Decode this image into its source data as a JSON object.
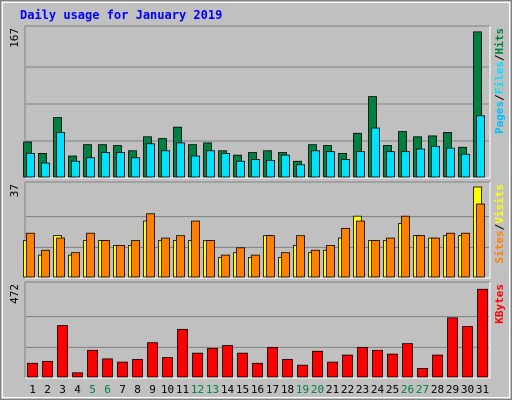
{
  "title": "Daily usage for January 2019",
  "colors": {
    "background": "#C0C0C0",
    "panel": "#C0C0C0",
    "grid": "#808080",
    "title": "#0000FF",
    "hits": "#008040",
    "files": "#00E0FF",
    "pages": "#00C0FF",
    "visits": "#FFFF00",
    "sites": "#FF8000",
    "kbytes": "#FF0000",
    "weekend": "#008040",
    "weekday": "#000000",
    "legend_sep": "#000000"
  },
  "chart_data": [
    {
      "type": "bar",
      "name": "hits-files-pages",
      "categories": [
        "1",
        "2",
        "3",
        "4",
        "5",
        "6",
        "7",
        "8",
        "9",
        "10",
        "11",
        "12",
        "13",
        "14",
        "15",
        "16",
        "17",
        "18",
        "19",
        "20",
        "21",
        "22",
        "23",
        "24",
        "25",
        "26",
        "27",
        "28",
        "29",
        "30",
        "31"
      ],
      "weekend_categories": [
        "5",
        "6",
        "12",
        "13",
        "19",
        "20",
        "26",
        "27"
      ],
      "max_label": "167",
      "ylim": [
        0,
        167
      ],
      "legend": [
        "Pages",
        "Files",
        "Hits"
      ],
      "series": [
        {
          "name": "Hits",
          "color": "#008040",
          "values": [
            40,
            27,
            68,
            24,
            37,
            37,
            36,
            30,
            46,
            44,
            57,
            37,
            39,
            30,
            25,
            28,
            30,
            28,
            18,
            37,
            36,
            27,
            50,
            92,
            36,
            52,
            46,
            47,
            51,
            34,
            166
          ]
        },
        {
          "name": "Files",
          "color": "#00E0FF",
          "values": [
            27,
            16,
            51,
            18,
            22,
            28,
            28,
            22,
            38,
            30,
            39,
            24,
            30,
            27,
            18,
            20,
            19,
            25,
            14,
            30,
            29,
            20,
            29,
            56,
            29,
            29,
            32,
            35,
            33,
            26,
            70
          ]
        }
      ]
    },
    {
      "type": "bar",
      "name": "visits-sites",
      "categories": [
        "1",
        "2",
        "3",
        "4",
        "5",
        "6",
        "7",
        "8",
        "9",
        "10",
        "11",
        "12",
        "13",
        "14",
        "15",
        "16",
        "17",
        "18",
        "19",
        "20",
        "21",
        "22",
        "23",
        "24",
        "25",
        "26",
        "27",
        "28",
        "29",
        "30",
        "31"
      ],
      "max_label": "37",
      "ylim": [
        0,
        37
      ],
      "legend": [
        "Sites",
        "Visits"
      ],
      "series": [
        {
          "name": "Visits",
          "color": "#FFFF00",
          "values": [
            15,
            9,
            17,
            9,
            15,
            15,
            13,
            13,
            23,
            15,
            15,
            15,
            15,
            8,
            10,
            8,
            17,
            8,
            13,
            10,
            11,
            16,
            25,
            15,
            15,
            22,
            17,
            16,
            17,
            17,
            37
          ]
        },
        {
          "name": "Sites",
          "color": "#FF8000",
          "values": [
            18,
            11,
            16,
            10,
            18,
            15,
            13,
            15,
            26,
            16,
            17,
            23,
            15,
            9,
            12,
            9,
            17,
            10,
            17,
            11,
            13,
            20,
            23,
            15,
            16,
            25,
            17,
            16,
            18,
            18,
            30
          ]
        }
      ]
    },
    {
      "type": "bar",
      "name": "kbytes",
      "categories": [
        "1",
        "2",
        "3",
        "4",
        "5",
        "6",
        "7",
        "8",
        "9",
        "10",
        "11",
        "12",
        "13",
        "14",
        "15",
        "16",
        "17",
        "18",
        "19",
        "20",
        "21",
        "22",
        "23",
        "24",
        "25",
        "26",
        "27",
        "28",
        "29",
        "30",
        "31"
      ],
      "max_label": "472",
      "ylim": [
        0,
        472
      ],
      "legend": [
        "KBytes"
      ],
      "series": [
        {
          "name": "KBytes",
          "color": "#FF0000",
          "values": [
            72,
            82,
            270,
            22,
            140,
            95,
            78,
            92,
            180,
            102,
            250,
            125,
            150,
            165,
            125,
            72,
            155,
            92,
            62,
            135,
            78,
            115,
            155,
            140,
            120,
            175,
            45,
            115,
            310,
            265,
            460
          ]
        }
      ]
    }
  ]
}
